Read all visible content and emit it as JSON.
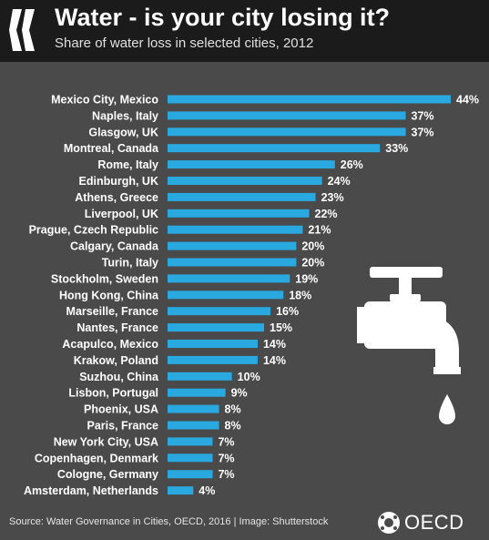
{
  "header": {
    "title": "Water - is your city losing it?",
    "subtitle": "Share of water loss in selected cities, 2012"
  },
  "chart_data": {
    "type": "bar",
    "orientation": "horizontal",
    "categories": [
      "Mexico City, Mexico",
      "Naples, Italy",
      "Glasgow, UK",
      "Montreal, Canada",
      "Rome, Italy",
      "Edinburgh, UK",
      "Athens, Greece",
      "Liverpool, UK",
      "Prague, Czech Republic",
      "Calgary, Canada",
      "Turin, Italy",
      "Stockholm, Sweden",
      "Hong Kong, China",
      "Marseille, France",
      "Nantes, France",
      "Acapulco, Mexico",
      "Krakow, Poland",
      "Suzhou, China",
      "Lisbon, Portugal",
      "Phoenix, USA",
      "Paris, France",
      "New York City, USA",
      "Copenhagen, Denmark",
      "Cologne, Germany",
      "Amsterdam, Netherlands"
    ],
    "values": [
      44,
      37,
      37,
      33,
      26,
      24,
      23,
      22,
      21,
      20,
      20,
      19,
      18,
      16,
      15,
      14,
      14,
      10,
      9,
      8,
      8,
      7,
      7,
      7,
      4
    ],
    "value_labels": [
      "44%",
      "37%",
      "37%",
      "33%",
      "26%",
      "24%",
      "23%",
      "22%",
      "21%",
      "20%",
      "20%",
      "19%",
      "18%",
      "16%",
      "15%",
      "14%",
      "14%",
      "10%",
      "9%",
      "8%",
      "8%",
      "7%",
      "7%",
      "7%",
      "4%"
    ],
    "unit": "%",
    "xlim": [
      0,
      44
    ],
    "grid": false,
    "bar_color": "#29a9e0"
  },
  "footer": {
    "source": "Source: Water Governance in Cities, OECD, 2016 | Image: Shutterstock",
    "logo_text": "OECD"
  },
  "icons": {
    "tap": "water-tap-icon",
    "drop": "water-drop-icon",
    "brand": "oecd-logo-icon"
  },
  "colors": {
    "background": "#4a4a4a",
    "header": "#1b1b1b",
    "bar": "#29a9e0",
    "text": "#ffffff"
  }
}
